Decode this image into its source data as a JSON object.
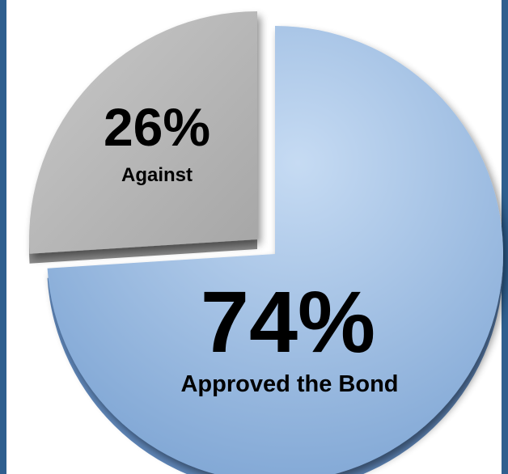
{
  "chart_data": {
    "type": "pie",
    "title": "",
    "slices": [
      {
        "label": "Approved the Bond",
        "value": 74,
        "value_label": "74%",
        "color": "#8fb2de"
      },
      {
        "label": "Against",
        "value": 26,
        "value_label": "26%",
        "color": "#b3b3b3"
      }
    ],
    "exploded_slice": "Against",
    "style": "3d"
  },
  "colors": {
    "frame": "#2f5f8f",
    "approved_light": "#b9d1ee",
    "approved_dark": "#6f97c9",
    "against_light": "#cfcfcf",
    "against_dark": "#999999"
  }
}
